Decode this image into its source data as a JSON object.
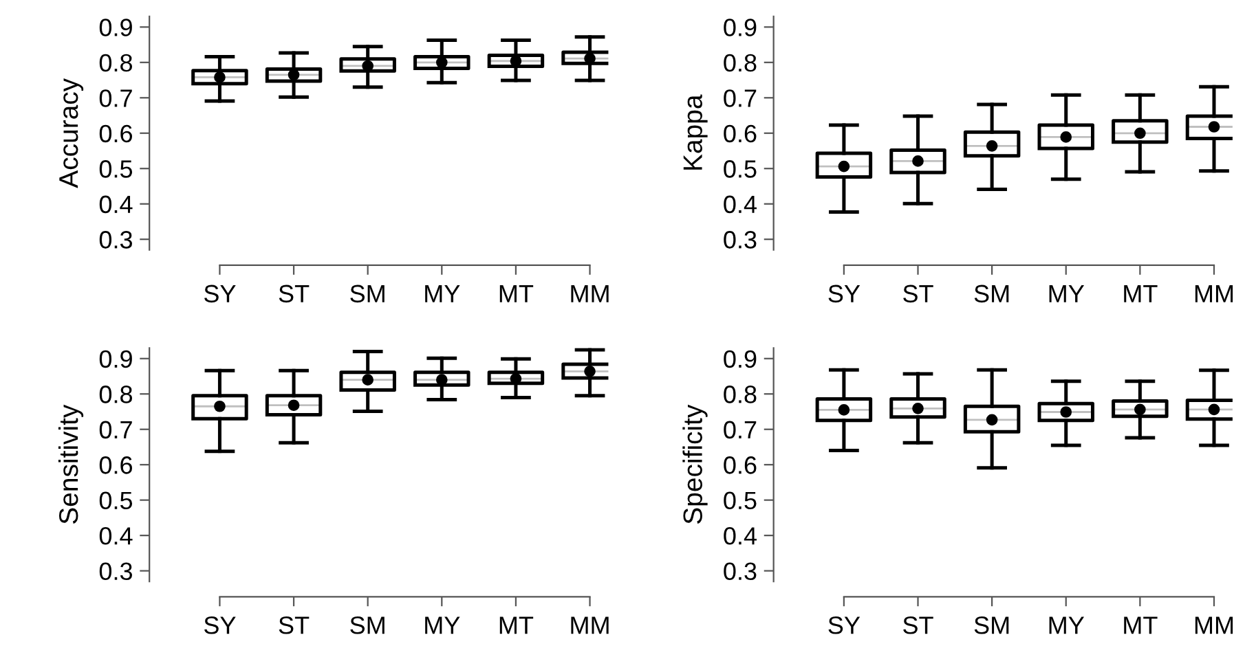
{
  "chart_data": [
    {
      "type": "box",
      "ylabel": "Accuracy",
      "categories": [
        "SY",
        "ST",
        "SM",
        "MY",
        "MT",
        "MM"
      ],
      "ylim": [
        0.27,
        0.93
      ],
      "yticks": [
        0.3,
        0.4,
        0.5,
        0.6,
        0.7,
        0.8,
        0.9
      ],
      "grid": false,
      "boxes": [
        {
          "low": 0.691,
          "q1": 0.74,
          "median": 0.758,
          "q3": 0.777,
          "high": 0.816,
          "mean": 0.758
        },
        {
          "low": 0.702,
          "q1": 0.747,
          "median": 0.765,
          "q3": 0.781,
          "high": 0.827,
          "mean": 0.765
        },
        {
          "low": 0.73,
          "q1": 0.776,
          "median": 0.79,
          "q3": 0.81,
          "high": 0.845,
          "mean": 0.79
        },
        {
          "low": 0.743,
          "q1": 0.783,
          "median": 0.8,
          "q3": 0.816,
          "high": 0.863,
          "mean": 0.8
        },
        {
          "low": 0.749,
          "q1": 0.789,
          "median": 0.804,
          "q3": 0.82,
          "high": 0.863,
          "mean": 0.804
        },
        {
          "low": 0.749,
          "q1": 0.797,
          "median": 0.811,
          "q3": 0.829,
          "high": 0.872,
          "mean": 0.811
        }
      ]
    },
    {
      "type": "box",
      "ylabel": "Kappa",
      "categories": [
        "SY",
        "ST",
        "SM",
        "MY",
        "MT",
        "MM"
      ],
      "ylim": [
        0.27,
        0.93
      ],
      "yticks": [
        0.3,
        0.4,
        0.5,
        0.6,
        0.7,
        0.8,
        0.9
      ],
      "grid": false,
      "boxes": [
        {
          "low": 0.377,
          "q1": 0.476,
          "median": 0.506,
          "q3": 0.543,
          "high": 0.623,
          "mean": 0.506
        },
        {
          "low": 0.401,
          "q1": 0.489,
          "median": 0.521,
          "q3": 0.552,
          "high": 0.648,
          "mean": 0.521
        },
        {
          "low": 0.441,
          "q1": 0.536,
          "median": 0.564,
          "q3": 0.603,
          "high": 0.681,
          "mean": 0.564
        },
        {
          "low": 0.47,
          "q1": 0.557,
          "median": 0.589,
          "q3": 0.623,
          "high": 0.708,
          "mean": 0.589
        },
        {
          "low": 0.491,
          "q1": 0.575,
          "median": 0.6,
          "q3": 0.635,
          "high": 0.708,
          "mean": 0.6
        },
        {
          "low": 0.493,
          "q1": 0.585,
          "median": 0.618,
          "q3": 0.648,
          "high": 0.731,
          "mean": 0.618
        }
      ]
    },
    {
      "type": "box",
      "ylabel": "Sensitivity",
      "categories": [
        "SY",
        "ST",
        "SM",
        "MY",
        "MT",
        "MM"
      ],
      "ylim": [
        0.27,
        0.93
      ],
      "yticks": [
        0.3,
        0.4,
        0.5,
        0.6,
        0.7,
        0.8,
        0.9
      ],
      "grid": false,
      "boxes": [
        {
          "low": 0.638,
          "q1": 0.73,
          "median": 0.765,
          "q3": 0.795,
          "high": 0.866,
          "mean": 0.765
        },
        {
          "low": 0.662,
          "q1": 0.741,
          "median": 0.768,
          "q3": 0.795,
          "high": 0.866,
          "mean": 0.768
        },
        {
          "low": 0.751,
          "q1": 0.811,
          "median": 0.84,
          "q3": 0.861,
          "high": 0.92,
          "mean": 0.84
        },
        {
          "low": 0.784,
          "q1": 0.825,
          "median": 0.84,
          "q3": 0.861,
          "high": 0.901,
          "mean": 0.84
        },
        {
          "low": 0.79,
          "q1": 0.83,
          "median": 0.843,
          "q3": 0.861,
          "high": 0.899,
          "mean": 0.843
        },
        {
          "low": 0.795,
          "q1": 0.845,
          "median": 0.864,
          "q3": 0.884,
          "high": 0.925,
          "mean": 0.864
        }
      ]
    },
    {
      "type": "box",
      "ylabel": "Specificity",
      "categories": [
        "SY",
        "ST",
        "SM",
        "MY",
        "MT",
        "MM"
      ],
      "ylim": [
        0.27,
        0.93
      ],
      "yticks": [
        0.3,
        0.4,
        0.5,
        0.6,
        0.7,
        0.8,
        0.9
      ],
      "grid": false,
      "boxes": [
        {
          "low": 0.64,
          "q1": 0.725,
          "median": 0.755,
          "q3": 0.786,
          "high": 0.868,
          "mean": 0.755
        },
        {
          "low": 0.662,
          "q1": 0.735,
          "median": 0.759,
          "q3": 0.786,
          "high": 0.857,
          "mean": 0.759
        },
        {
          "low": 0.591,
          "q1": 0.693,
          "median": 0.727,
          "q3": 0.765,
          "high": 0.868,
          "mean": 0.727
        },
        {
          "low": 0.655,
          "q1": 0.725,
          "median": 0.749,
          "q3": 0.773,
          "high": 0.836,
          "mean": 0.749
        },
        {
          "low": 0.676,
          "q1": 0.737,
          "median": 0.756,
          "q3": 0.78,
          "high": 0.836,
          "mean": 0.756
        },
        {
          "low": 0.655,
          "q1": 0.729,
          "median": 0.756,
          "q3": 0.782,
          "high": 0.867,
          "mean": 0.756
        }
      ]
    }
  ]
}
